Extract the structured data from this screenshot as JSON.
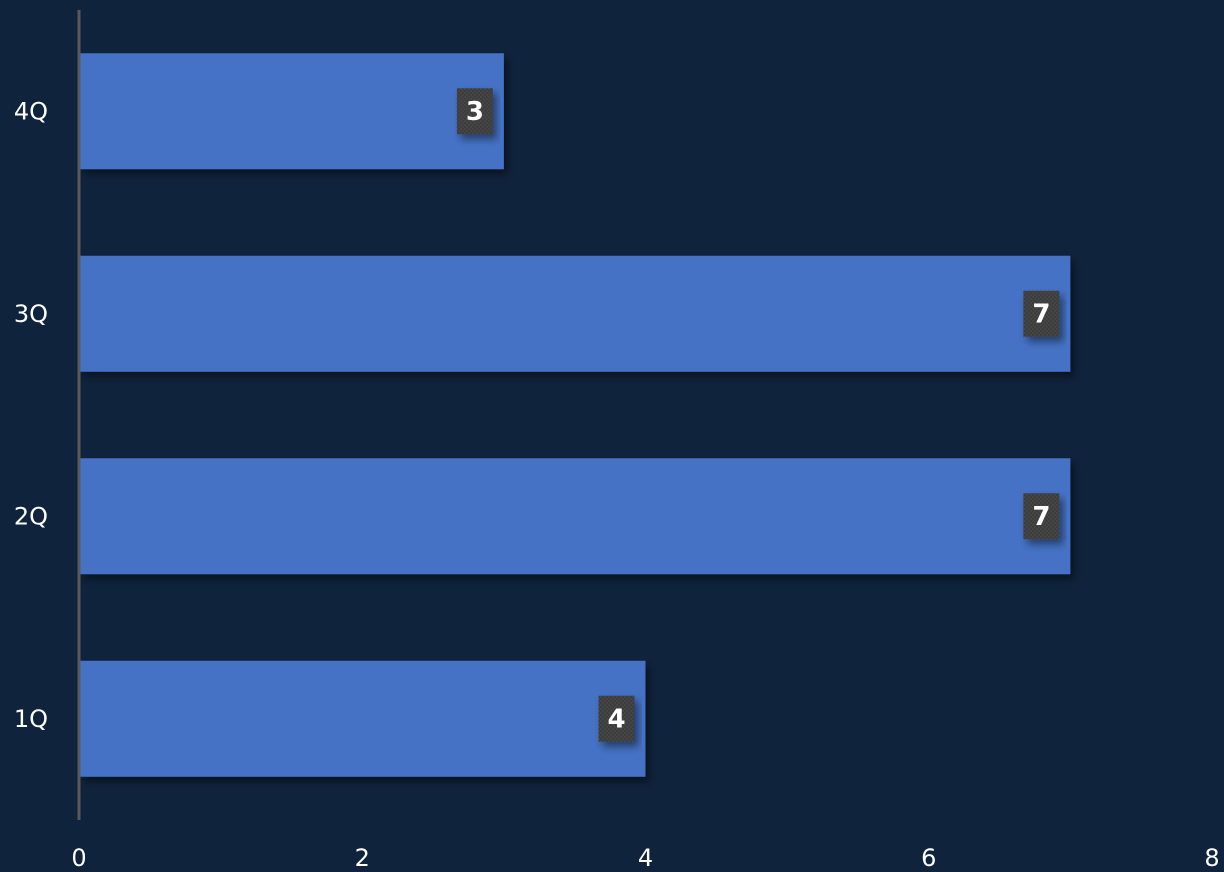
{
  "chart_data": {
    "type": "bar",
    "orientation": "horizontal",
    "categories": [
      "1Q",
      "2Q",
      "3Q",
      "4Q"
    ],
    "values": [
      4,
      7,
      7,
      3
    ],
    "data_labels": [
      "4",
      "7",
      "7",
      "3"
    ],
    "xlim": [
      0,
      8
    ],
    "x_ticks": [
      "0",
      "2",
      "4",
      "6",
      "8"
    ],
    "grid": false,
    "legend": "none",
    "title": "",
    "xlabel": "",
    "ylabel": ""
  },
  "colors": {
    "background": "#10233c",
    "bar": "#4472c4",
    "axis": "#595959",
    "label_box": "#404040",
    "text": "#ffffff"
  }
}
